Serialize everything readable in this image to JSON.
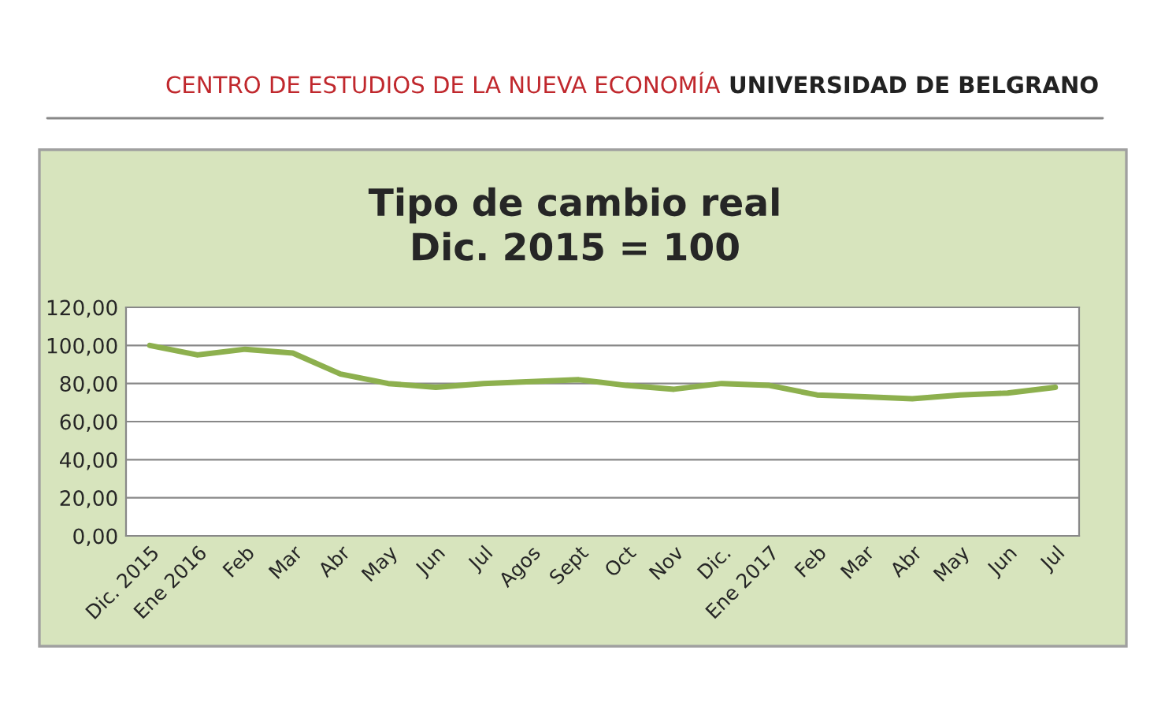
{
  "chart_data": {
    "type": "line",
    "title": "Tipo de cambio real\nDic. 2015 = 100",
    "annotations": [
      "CENTRO DE ESTUDIOS DE LA NUEVA ECONOMÍA",
      "UNIVERSIDAD DE BELGRANO"
    ],
    "categories": [
      "Dic. 2015",
      "Ene 2016",
      "Feb",
      "Mar",
      "Abr",
      "May",
      "Jun",
      "Jul",
      "Agos",
      "Sept",
      "Oct",
      "Nov",
      "Dic.",
      "Ene 2017",
      "Feb",
      "Mar",
      "Abr",
      "May",
      "Jun",
      "Jul"
    ],
    "series": [
      {
        "color": "#8db04e",
        "values": [
          100,
          95,
          98,
          96,
          85,
          80,
          78,
          80,
          81,
          82,
          79,
          77,
          80,
          79,
          74,
          73,
          72,
          74,
          75,
          78
        ]
      }
    ],
    "ylim": [
      0,
      120
    ],
    "yticks": [
      {
        "value": 0,
        "label": "0,00"
      },
      {
        "value": 20,
        "label": "20,00"
      },
      {
        "value": 40,
        "label": "40,00"
      },
      {
        "value": 60,
        "label": "60,00"
      },
      {
        "value": 80,
        "label": "80,00"
      },
      {
        "value": 100,
        "label": "100,00"
      },
      {
        "value": 120,
        "label": "120,00"
      }
    ],
    "grid": "y",
    "legend": false
  }
}
